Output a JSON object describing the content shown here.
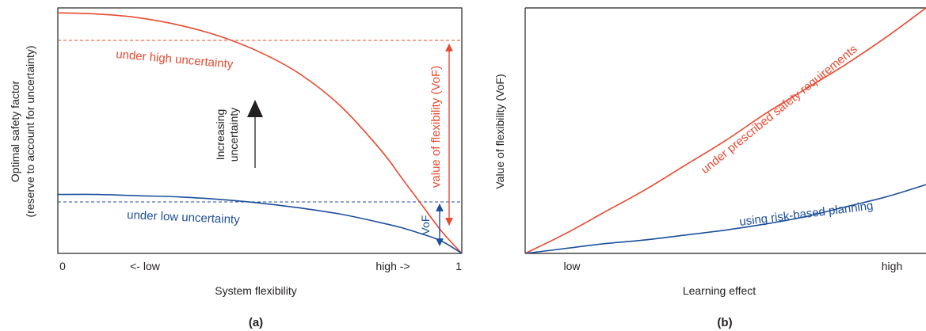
{
  "colors": {
    "high": "#e8492f",
    "low": "#1d4f9c",
    "axis": "#231f20"
  },
  "chart_data": [
    {
      "type": "line",
      "panel_label": "(a)",
      "xlabel": "System flexibility",
      "ylabel_line1": "Optimal safety factor",
      "ylabel_line2": "(reserve to account for uncertainty)",
      "x_ticks": [
        "0",
        "<- low",
        "high ->",
        "1"
      ],
      "xlim": [
        0,
        1
      ],
      "ylim": [
        0,
        1
      ],
      "series": [
        {
          "name": "under high uncertainty",
          "color": "high",
          "x": [
            0,
            0.1,
            0.2,
            0.3,
            0.4,
            0.5,
            0.6,
            0.7,
            0.8,
            0.85,
            0.9,
            0.95,
            1.0
          ],
          "y": [
            0.98,
            0.975,
            0.96,
            0.93,
            0.885,
            0.82,
            0.73,
            0.6,
            0.42,
            0.31,
            0.2,
            0.09,
            0.0
          ]
        },
        {
          "name": "under low uncertainty",
          "color": "low",
          "x": [
            0,
            0.1,
            0.2,
            0.3,
            0.4,
            0.5,
            0.6,
            0.7,
            0.8,
            0.85,
            0.9,
            0.95,
            1.0
          ],
          "y": [
            0.24,
            0.24,
            0.235,
            0.23,
            0.22,
            0.205,
            0.185,
            0.16,
            0.125,
            0.105,
            0.08,
            0.05,
            0.0
          ]
        }
      ],
      "annotations": {
        "increasing_uncertainty_line1": "Increasing",
        "increasing_uncertainty_line2": "uncertainty",
        "value_of_flexibility": "value of flexibility (VoF)",
        "vof": "VoF"
      }
    },
    {
      "type": "line",
      "panel_label": "(b)",
      "xlabel": "Learning effect",
      "ylabel": "Value of flexibility (VoF)",
      "x_ticks": [
        "low",
        "high"
      ],
      "xlim": [
        0,
        1
      ],
      "ylim": [
        0,
        1
      ],
      "series": [
        {
          "name": "under prescribed safety requirements",
          "color": "high",
          "x": [
            0,
            0.1,
            0.2,
            0.3,
            0.4,
            0.5,
            0.6,
            0.7,
            0.8,
            0.9,
            1.0
          ],
          "y": [
            0,
            0.08,
            0.17,
            0.26,
            0.36,
            0.46,
            0.57,
            0.67,
            0.77,
            0.88,
            1.0
          ]
        },
        {
          "name": "using risk-based planning",
          "color": "low",
          "x": [
            0,
            0.1,
            0.2,
            0.3,
            0.4,
            0.5,
            0.6,
            0.7,
            0.8,
            0.9,
            1.0
          ],
          "y": [
            0,
            0.02,
            0.04,
            0.055,
            0.075,
            0.095,
            0.12,
            0.15,
            0.19,
            0.23,
            0.28
          ]
        }
      ]
    }
  ]
}
